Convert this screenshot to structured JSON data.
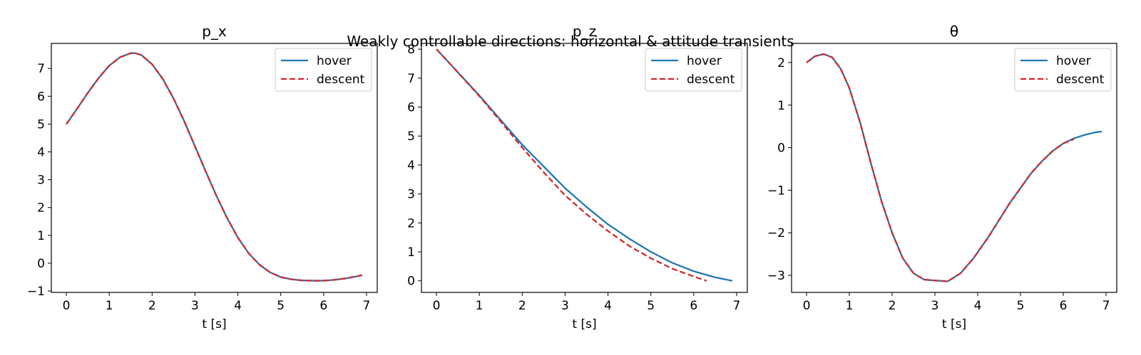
{
  "figure": {
    "suptitle": "Weakly controllable directions: horizontal & attitude transients"
  },
  "colors": {
    "hover": "#1f77b4",
    "descent": "#d62728"
  },
  "chart_data": [
    {
      "type": "line",
      "title": "p_x",
      "xlabel": "t [s]",
      "ylabel": "",
      "xlim": [
        -0.35,
        7.25
      ],
      "ylim": [
        -1.05,
        7.9
      ],
      "xticks": [
        "0",
        "1",
        "2",
        "3",
        "4",
        "5",
        "6",
        "7"
      ],
      "yticks": [
        "−1",
        "0",
        "1",
        "2",
        "3",
        "4",
        "5",
        "6",
        "7"
      ],
      "legend": "top-right",
      "grid": false,
      "series": [
        {
          "name": "hover",
          "style": "solid",
          "x": [
            0,
            0.25,
            0.5,
            0.75,
            1.0,
            1.25,
            1.5,
            1.6,
            1.75,
            2.0,
            2.25,
            2.5,
            2.75,
            3.0,
            3.25,
            3.5,
            3.75,
            4.0,
            4.25,
            4.5,
            4.75,
            5.0,
            5.25,
            5.5,
            5.75,
            6.0,
            6.25,
            6.5,
            6.75,
            6.9
          ],
          "y": [
            5.0,
            5.55,
            6.12,
            6.65,
            7.1,
            7.4,
            7.55,
            7.55,
            7.48,
            7.15,
            6.62,
            5.92,
            5.1,
            4.2,
            3.3,
            2.42,
            1.62,
            0.92,
            0.36,
            -0.05,
            -0.33,
            -0.5,
            -0.58,
            -0.62,
            -0.63,
            -0.63,
            -0.6,
            -0.55,
            -0.48,
            -0.43
          ]
        },
        {
          "name": "descent",
          "style": "dashed",
          "x": [
            0,
            0.25,
            0.5,
            0.75,
            1.0,
            1.25,
            1.5,
            1.6,
            1.75,
            2.0,
            2.25,
            2.5,
            2.75,
            3.0,
            3.25,
            3.5,
            3.75,
            4.0,
            4.25,
            4.5,
            4.75,
            5.0,
            5.25,
            5.5,
            5.75,
            6.0,
            6.25,
            6.5,
            6.75,
            6.9
          ],
          "y": [
            5.0,
            5.55,
            6.12,
            6.65,
            7.1,
            7.4,
            7.55,
            7.55,
            7.48,
            7.15,
            6.62,
            5.92,
            5.1,
            4.2,
            3.3,
            2.42,
            1.62,
            0.92,
            0.36,
            -0.05,
            -0.33,
            -0.5,
            -0.58,
            -0.62,
            -0.63,
            -0.63,
            -0.6,
            -0.55,
            -0.48,
            -0.43
          ]
        }
      ]
    },
    {
      "type": "line",
      "title": "p_z",
      "xlabel": "t [s]",
      "ylabel": "",
      "xlim": [
        -0.35,
        7.25
      ],
      "ylim": [
        -0.4,
        8.2
      ],
      "xticks": [
        "0",
        "1",
        "2",
        "3",
        "4",
        "5",
        "6",
        "7"
      ],
      "yticks": [
        "0",
        "1",
        "2",
        "3",
        "4",
        "5",
        "6",
        "7",
        "8"
      ],
      "legend": "top-right",
      "grid": false,
      "series": [
        {
          "name": "hover",
          "style": "solid",
          "x": [
            0,
            0.5,
            1.0,
            1.5,
            2.0,
            2.5,
            3.0,
            3.5,
            4.0,
            4.5,
            5.0,
            5.5,
            6.0,
            6.5,
            6.9
          ],
          "y": [
            8.0,
            7.2,
            6.4,
            5.55,
            4.7,
            3.95,
            3.2,
            2.55,
            1.95,
            1.45,
            1.0,
            0.62,
            0.33,
            0.12,
            0.0
          ]
        },
        {
          "name": "descent",
          "style": "dashed",
          "x": [
            0,
            0.5,
            1.0,
            1.5,
            2.0,
            2.5,
            3.0,
            3.5,
            4.0,
            4.5,
            5.0,
            5.5,
            6.0,
            6.3
          ],
          "y": [
            8.0,
            7.2,
            6.38,
            5.5,
            4.6,
            3.75,
            2.95,
            2.3,
            1.72,
            1.2,
            0.78,
            0.42,
            0.15,
            0.0
          ]
        }
      ]
    },
    {
      "type": "line",
      "title": "θ",
      "xlabel": "t [s]",
      "ylabel": "",
      "xlim": [
        -0.35,
        7.25
      ],
      "ylim": [
        -3.4,
        2.45
      ],
      "xticks": [
        "0",
        "1",
        "2",
        "3",
        "4",
        "5",
        "6",
        "7"
      ],
      "yticks": [
        "−3",
        "−2",
        "−1",
        "0",
        "1",
        "2"
      ],
      "legend": "top-right",
      "grid": false,
      "series": [
        {
          "name": "hover",
          "style": "solid",
          "x": [
            0,
            0.2,
            0.4,
            0.6,
            0.8,
            1.0,
            1.25,
            1.5,
            1.75,
            2.0,
            2.25,
            2.5,
            2.75,
            3.0,
            3.3,
            3.6,
            3.9,
            4.25,
            4.5,
            4.75,
            5.0,
            5.25,
            5.5,
            5.75,
            6.0,
            6.25,
            6.5,
            6.75,
            6.9
          ],
          "y": [
            2.0,
            2.15,
            2.2,
            2.12,
            1.85,
            1.4,
            0.6,
            -0.35,
            -1.25,
            -2.0,
            -2.6,
            -2.95,
            -3.1,
            -3.12,
            -3.14,
            -2.95,
            -2.6,
            -2.1,
            -1.7,
            -1.3,
            -0.95,
            -0.6,
            -0.32,
            -0.08,
            0.1,
            0.22,
            0.3,
            0.36,
            0.38
          ]
        },
        {
          "name": "descent",
          "style": "dashed",
          "x": [
            0,
            0.2,
            0.4,
            0.6,
            0.8,
            1.0,
            1.25,
            1.5,
            1.75,
            2.0,
            2.25,
            2.5,
            2.75,
            3.0,
            3.3,
            3.6,
            3.9,
            4.25,
            4.5,
            4.75,
            5.0,
            5.25,
            5.5,
            5.75,
            6.0,
            6.25
          ],
          "y": [
            2.0,
            2.15,
            2.2,
            2.12,
            1.85,
            1.4,
            0.6,
            -0.35,
            -1.25,
            -2.0,
            -2.6,
            -2.95,
            -3.1,
            -3.12,
            -3.14,
            -2.95,
            -2.6,
            -2.1,
            -1.7,
            -1.3,
            -0.95,
            -0.6,
            -0.32,
            -0.08,
            0.1,
            0.2
          ]
        }
      ]
    }
  ]
}
